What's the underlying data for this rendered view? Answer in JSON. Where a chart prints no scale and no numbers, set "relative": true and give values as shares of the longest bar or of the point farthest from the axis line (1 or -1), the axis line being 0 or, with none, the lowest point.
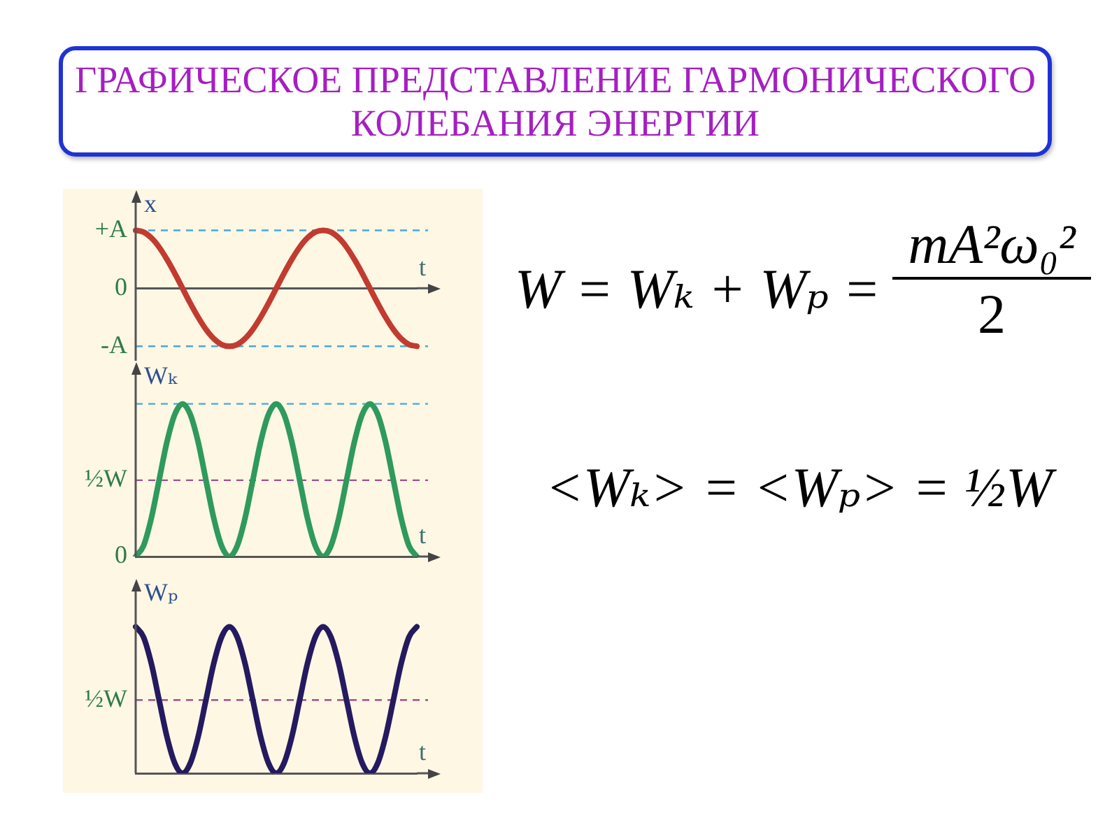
{
  "chart_data": [
    {
      "type": "line",
      "title": "ГРАФИЧЕСКОЕ ПРЕДСТАВЛЕНИЕ ГАРМОНИЧЕСКОГО КОЛЕБАНИЯ ЭНЕРГИИ",
      "xlabel": "t",
      "ylabel": "x",
      "relative": true,
      "categories": [
        null,
        null,
        null,
        null,
        null,
        null,
        null,
        null,
        null,
        null,
        null,
        null,
        null,
        null,
        null,
        null,
        null,
        null,
        null,
        null,
        null,
        null,
        null,
        null,
        null,
        null,
        null,
        null,
        null,
        null,
        null,
        null,
        null,
        null,
        null,
        null,
        null
      ],
      "series": [
        {
          "color": "#c23b30",
          "values": [
            1,
            0.97,
            0.87,
            0.71,
            0.5,
            0.26,
            0,
            -0.26,
            -0.5,
            -0.71,
            -0.87,
            -0.97,
            -1,
            -0.97,
            -0.87,
            -0.71,
            -0.5,
            -0.26,
            0,
            0.26,
            0.5,
            0.71,
            0.87,
            0.97,
            1,
            0.97,
            0.87,
            0.71,
            0.5,
            0.26,
            0,
            -0.26,
            -0.5,
            -0.71,
            -0.87,
            -0.97,
            -1
          ]
        }
      ],
      "ref_lines": [
        {
          "axis": "y",
          "value": 1,
          "label": "+A",
          "color": "#4aa8dc",
          "line_style": "dashed"
        },
        {
          "axis": "y",
          "value": -1,
          "label": "-A",
          "color": "#4aa8dc",
          "line_style": "dashed"
        }
      ],
      "annotations": [
        "0"
      ]
    },
    {
      "type": "line",
      "xlabel": "t",
      "ylabel": "Wₖ",
      "relative": true,
      "categories": [
        null,
        null,
        null,
        null,
        null,
        null,
        null,
        null,
        null,
        null,
        null,
        null,
        null,
        null,
        null,
        null,
        null,
        null,
        null,
        null,
        null,
        null,
        null,
        null,
        null,
        null,
        null,
        null,
        null,
        null,
        null,
        null,
        null,
        null,
        null,
        null,
        null
      ],
      "series": [
        {
          "color": "#2e9a5c",
          "values": [
            0,
            0.07,
            0.25,
            0.5,
            0.75,
            0.93,
            1,
            0.93,
            0.75,
            0.5,
            0.25,
            0.07,
            0,
            0.07,
            0.25,
            0.5,
            0.75,
            0.93,
            1,
            0.93,
            0.75,
            0.5,
            0.25,
            0.07,
            0,
            0.07,
            0.25,
            0.5,
            0.75,
            0.93,
            1,
            0.93,
            0.75,
            0.5,
            0.25,
            0.07,
            0
          ]
        }
      ],
      "ref_lines": [
        {
          "axis": "y",
          "value": 1,
          "color": "#4aa8dc",
          "line_style": "dashed"
        },
        {
          "axis": "y",
          "value": 0.5,
          "label": "½W",
          "color": "#a0508c",
          "line_style": "dashed"
        }
      ],
      "annotations": [
        "0"
      ]
    },
    {
      "type": "line",
      "xlabel": "t",
      "ylabel": "Wₚ",
      "relative": true,
      "categories": [
        null,
        null,
        null,
        null,
        null,
        null,
        null,
        null,
        null,
        null,
        null,
        null,
        null,
        null,
        null,
        null,
        null,
        null,
        null,
        null,
        null,
        null,
        null,
        null,
        null,
        null,
        null,
        null,
        null,
        null,
        null,
        null,
        null,
        null,
        null,
        null,
        null
      ],
      "series": [
        {
          "color": "#251a60",
          "values": [
            1,
            0.93,
            0.75,
            0.5,
            0.25,
            0.07,
            0,
            0.07,
            0.25,
            0.5,
            0.75,
            0.93,
            1,
            0.93,
            0.75,
            0.5,
            0.25,
            0.07,
            0,
            0.07,
            0.25,
            0.5,
            0.75,
            0.93,
            1,
            0.93,
            0.75,
            0.5,
            0.25,
            0.07,
            0,
            0.07,
            0.25,
            0.5,
            0.75,
            0.93,
            1
          ]
        }
      ],
      "ref_lines": [
        {
          "axis": "y",
          "value": 0.5,
          "label": "½W",
          "color": "#a0508c",
          "line_style": "dashed"
        }
      ]
    },
    {
      "type": "other",
      "annotations": [
        "W = Wₖ + Wₚ =",
        "mA²ω₀²",
        "2",
        "<Wₖ> = <Wₚ> = ½W"
      ]
    }
  ]
}
